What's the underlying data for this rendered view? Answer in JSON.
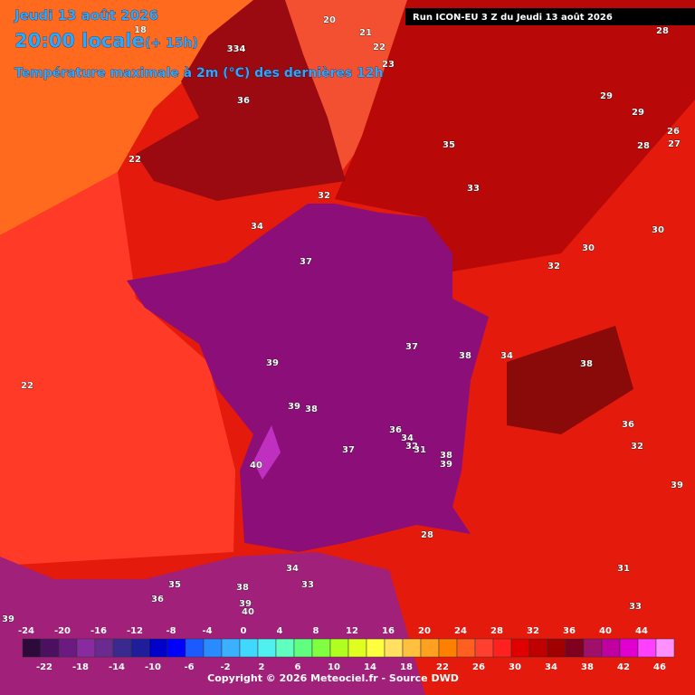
{
  "header": {
    "date": "Jeudi 13 août 2026",
    "time": "20:00 locale",
    "offset": "(+ 15h)",
    "title": "Température maximale à 2m (°C) des dernières 12h",
    "run": "Run ICON-EU 3 Z du Jeudi 13 août 2026"
  },
  "map_labels": [
    20,
    21,
    22,
    23,
    334,
    36,
    22,
    18,
    35,
    33,
    32,
    34,
    37,
    29,
    29,
    28,
    26,
    27,
    28,
    30,
    30,
    32,
    37,
    38,
    39,
    39,
    38,
    37,
    36,
    34,
    32,
    31,
    38,
    39,
    40,
    32,
    36,
    39,
    28,
    31,
    33,
    36,
    35,
    38,
    39,
    40,
    33,
    34,
    22,
    39,
    34,
    38
  ],
  "colorbar": {
    "ticks": [
      -24,
      -22,
      -20,
      -18,
      -16,
      -14,
      -12,
      -10,
      -8,
      -6,
      -4,
      -2,
      0,
      2,
      4,
      6,
      8,
      10,
      12,
      14,
      16,
      18,
      20,
      22,
      24,
      26,
      28,
      30,
      32,
      34,
      36,
      38,
      40,
      42,
      44,
      46
    ],
    "colors": [
      "#2d0a3a",
      "#4b1060",
      "#6b1a80",
      "#8a2aa0",
      "#6a2a90",
      "#3a2a90",
      "#1e1e9a",
      "#0000c8",
      "#0000ff",
      "#1a5aff",
      "#2a8aff",
      "#3ab0ff",
      "#40d8ff",
      "#50f0f0",
      "#60ffc0",
      "#60ff80",
      "#80ff40",
      "#b0ff20",
      "#e0ff20",
      "#ffff40",
      "#ffe060",
      "#ffc040",
      "#ffa020",
      "#ff8000",
      "#ff6020",
      "#ff4030",
      "#ff2020",
      "#e00000",
      "#c00000",
      "#a00000",
      "#800020",
      "#a0106a",
      "#c000a0",
      "#e000d0",
      "#ff40ff",
      "#ff90ff"
    ]
  },
  "footer": {
    "copyright": "Copyright © 2026 Meteociel.fr - Source DWD"
  }
}
